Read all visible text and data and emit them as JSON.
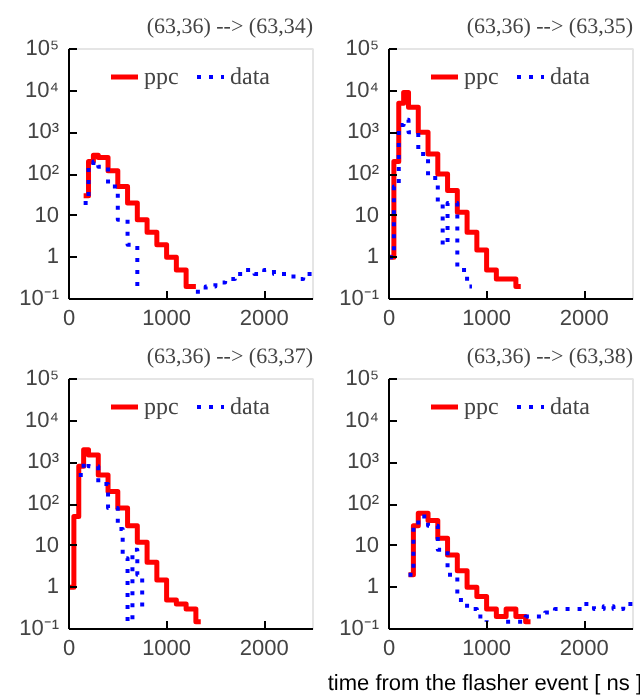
{
  "chart_data": [
    {
      "type": "step",
      "title": "(63,36) --> (63,34)",
      "xlim": [
        0,
        2500
      ],
      "xticks": [
        0,
        1000,
        2000
      ],
      "ylim": [
        0.1,
        100000
      ],
      "log": "y",
      "grid": false,
      "legend": "top",
      "marker": "none",
      "yticks": [
        {
          "value": 0.1,
          "label": "10⁻¹"
        },
        {
          "value": 1,
          "label": "1"
        },
        {
          "value": 10,
          "label": "10"
        },
        {
          "value": 100,
          "label": "10²"
        },
        {
          "value": 1000,
          "label": "10³"
        },
        {
          "value": 10000,
          "label": "10⁴"
        },
        {
          "value": 100000,
          "label": "10⁵"
        }
      ],
      "series": [
        {
          "name": "ppc",
          "color": "#ff0000",
          "line_style": "solid",
          "x": [
            150,
            200,
            250,
            300,
            400,
            500,
            600,
            700,
            800,
            900,
            1000,
            1100,
            1200,
            1300
          ],
          "values": [
            30,
            200,
            280,
            250,
            120,
            50,
            20,
            8,
            4,
            2,
            1,
            0.5,
            0.2,
            0.2
          ]
        },
        {
          "name": "data",
          "color": "#0000ff",
          "line_style": "dotted",
          "x": [
            150,
            200,
            250,
            300,
            400,
            500,
            600,
            700,
            800,
            1300,
            1400,
            1500,
            1600,
            1700,
            1800,
            1900,
            2000,
            2100,
            2200,
            2300,
            2400,
            2500
          ],
          "values": [
            20,
            150,
            200,
            150,
            50,
            8,
            2,
            0.2,
            null,
            0.15,
            0.2,
            0.25,
            0.3,
            0.4,
            0.5,
            0.4,
            0.5,
            0.4,
            0.4,
            0.3,
            0.4,
            0.4
          ]
        }
      ]
    },
    {
      "type": "step",
      "title": "(63,36) --> (63,35)",
      "xlim": [
        0,
        2500
      ],
      "xticks": [
        0,
        1000,
        2000
      ],
      "ylim": [
        0.1,
        100000
      ],
      "log": "y",
      "grid": false,
      "legend": "top",
      "marker": "none",
      "yticks": [
        {
          "value": 0.1,
          "label": "10⁻¹"
        },
        {
          "value": 1,
          "label": "1"
        },
        {
          "value": 10,
          "label": "10"
        },
        {
          "value": 100,
          "label": "10²"
        },
        {
          "value": 1000,
          "label": "10³"
        },
        {
          "value": 10000,
          "label": "10⁴"
        },
        {
          "value": 100000,
          "label": "10⁵"
        }
      ],
      "series": [
        {
          "name": "ppc",
          "color": "#ff0000",
          "line_style": "solid",
          "x": [
            0,
            50,
            100,
            150,
            200,
            300,
            400,
            500,
            600,
            700,
            800,
            900,
            1000,
            1100,
            1200,
            1300,
            1350
          ],
          "values": [
            1,
            200,
            5000,
            9000,
            4000,
            1000,
            300,
            100,
            40,
            12,
            4,
            1.5,
            0.5,
            0.3,
            0.3,
            0.2,
            0.2
          ]
        },
        {
          "name": "data",
          "color": "#0000ff",
          "line_style": "dotted",
          "x": [
            0,
            50,
            100,
            150,
            200,
            300,
            400,
            500,
            550,
            600,
            700,
            800,
            850
          ],
          "values": [
            1,
            50,
            1500,
            2000,
            1000,
            300,
            80,
            20,
            2,
            20,
            0.5,
            0.2,
            0.2
          ]
        }
      ]
    },
    {
      "type": "step",
      "title": "(63,36) --> (63,37)",
      "xlim": [
        0,
        2500
      ],
      "xticks": [
        0,
        1000,
        2000
      ],
      "ylim": [
        0.1,
        100000
      ],
      "log": "y",
      "grid": false,
      "legend": "top",
      "marker": "none",
      "yticks": [
        {
          "value": 0.1,
          "label": "10⁻¹"
        },
        {
          "value": 1,
          "label": "1"
        },
        {
          "value": 10,
          "label": "10"
        },
        {
          "value": 100,
          "label": "10²"
        },
        {
          "value": 1000,
          "label": "10³"
        },
        {
          "value": 10000,
          "label": "10⁴"
        },
        {
          "value": 100000,
          "label": "10⁵"
        }
      ],
      "series": [
        {
          "name": "ppc",
          "color": "#ff0000",
          "line_style": "solid",
          "x": [
            0,
            50,
            100,
            150,
            200,
            300,
            400,
            500,
            600,
            700,
            800,
            900,
            1000,
            1100,
            1200,
            1300,
            1350
          ],
          "values": [
            1,
            50,
            800,
            2000,
            1500,
            500,
            200,
            80,
            30,
            12,
            4,
            1.5,
            0.5,
            0.4,
            0.3,
            0.15,
            0.15
          ]
        },
        {
          "name": "data",
          "color": "#0000ff",
          "line_style": "dotted",
          "x": [
            100,
            150,
            200,
            300,
            400,
            500,
            550,
            600,
            650,
            700,
            750,
            800
          ],
          "values": [
            500,
            1000,
            800,
            300,
            80,
            25,
            5,
            0.15,
            8,
            2,
            0.3,
            0.3
          ]
        }
      ]
    },
    {
      "type": "step",
      "title": "(63,36) --> (63,38)",
      "xlabel": "time from the flasher event [ ns ]",
      "xlim": [
        0,
        2500
      ],
      "xticks": [
        0,
        1000,
        2000
      ],
      "ylim": [
        0.1,
        100000
      ],
      "log": "y",
      "grid": false,
      "legend": "top",
      "marker": "none",
      "yticks": [
        {
          "value": 0.1,
          "label": "10⁻¹"
        },
        {
          "value": 1,
          "label": "1"
        },
        {
          "value": 10,
          "label": "10"
        },
        {
          "value": 100,
          "label": "10²"
        },
        {
          "value": 1000,
          "label": "10³"
        },
        {
          "value": 10000,
          "label": "10⁴"
        },
        {
          "value": 100000,
          "label": "10⁵"
        }
      ],
      "series": [
        {
          "name": "ppc",
          "color": "#ff0000",
          "line_style": "solid",
          "x": [
            200,
            250,
            300,
            350,
            400,
            500,
            600,
            700,
            800,
            900,
            1000,
            1100,
            1200,
            1300,
            1400,
            1450
          ],
          "values": [
            2,
            30,
            60,
            60,
            40,
            15,
            6,
            2.5,
            1,
            0.6,
            0.3,
            0.2,
            0.3,
            0.2,
            0.15,
            0.15
          ]
        },
        {
          "name": "data",
          "color": "#0000ff",
          "line_style": "dotted",
          "x": [
            200,
            250,
            300,
            350,
            400,
            500,
            600,
            700,
            800,
            900,
            1000,
            1100,
            1200,
            1300,
            1400,
            1500,
            1600,
            1700,
            1800,
            1900,
            2000,
            2100,
            2200,
            2300,
            2400,
            2500
          ],
          "values": [
            2,
            30,
            50,
            50,
            30,
            8,
            2,
            0.5,
            0.3,
            0.2,
            0.15,
            null,
            0.15,
            0.15,
            0.2,
            0.2,
            0.25,
            0.3,
            0.3,
            0.3,
            0.4,
            0.3,
            0.35,
            0.3,
            0.4,
            0.4
          ]
        }
      ]
    }
  ]
}
